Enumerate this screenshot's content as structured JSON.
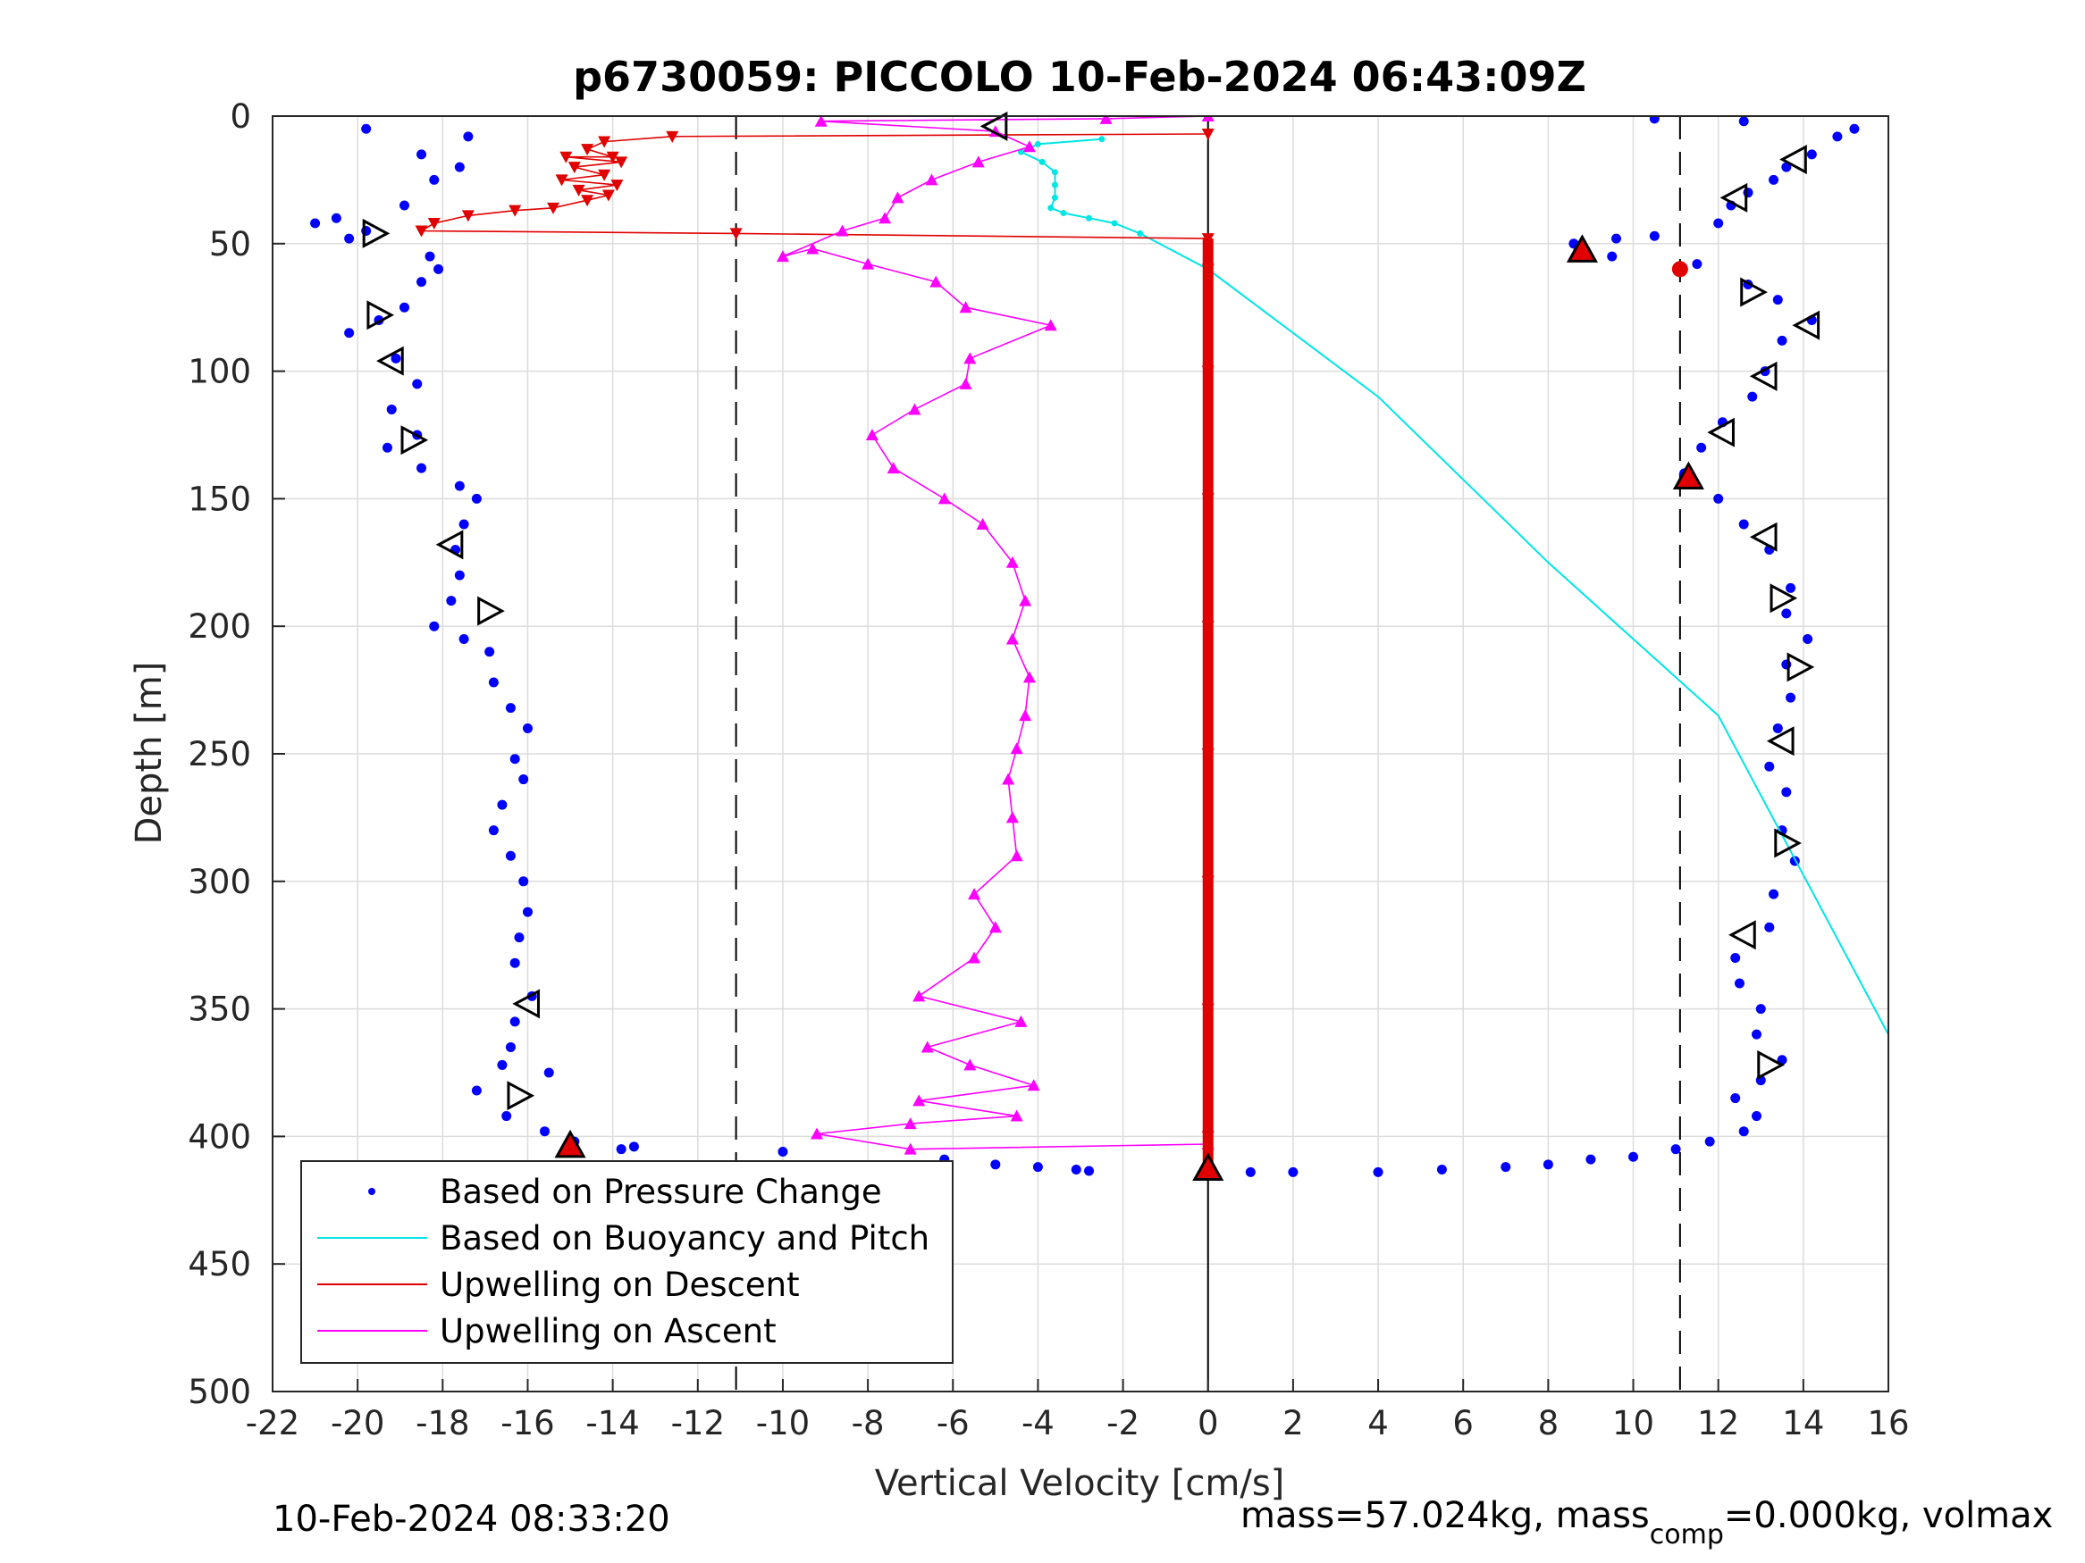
{
  "chart_data": {
    "type": "scatter",
    "title": "p6730059: PICCOLO 10-Feb-2024 06:43:09Z",
    "xlabel": "Vertical Velocity [cm/s]",
    "ylabel": "Depth [m]",
    "xlim": [
      -22,
      16
    ],
    "ylim": [
      0,
      500
    ],
    "y_reversed": true,
    "grid": true,
    "x_ticks": [
      -22,
      -20,
      -18,
      -16,
      -14,
      -12,
      -10,
      -8,
      -6,
      -4,
      -2,
      0,
      2,
      4,
      6,
      8,
      10,
      12,
      14,
      16
    ],
    "y_ticks": [
      0,
      50,
      100,
      150,
      200,
      250,
      300,
      350,
      400,
      450,
      500
    ],
    "x_tick_labels": [
      "-22",
      "-20",
      "-18",
      "-16",
      "-14",
      "-12",
      "-10",
      "-8",
      "-6",
      "-4",
      "-2",
      "0",
      "2",
      "4",
      "6",
      "8",
      "10",
      "12",
      "14",
      "16"
    ],
    "y_tick_labels": [
      "0",
      "50",
      "100",
      "150",
      "200",
      "250",
      "300",
      "350",
      "400",
      "450",
      "500"
    ],
    "reference_lines": [
      {
        "x": -11.1,
        "style": "dashed",
        "color": "#000000"
      },
      {
        "x": 11.1,
        "style": "dashed",
        "color": "#000000"
      },
      {
        "x": 0,
        "style": "solid",
        "color": "#000000"
      }
    ],
    "legend": {
      "position": "bottom-left",
      "entries": [
        {
          "label": "Based on Pressure Change",
          "color": "#0000ff",
          "style": "dot"
        },
        {
          "label": "Based on Buoyancy and Pitch",
          "color": "#00e5e5",
          "style": "line"
        },
        {
          "label": "Upwelling on Descent",
          "color": "#e00000",
          "style": "line"
        },
        {
          "label": "Upwelling on Ascent",
          "color": "#ff00ff",
          "style": "line"
        }
      ]
    },
    "series": [
      {
        "name": "Based on Pressure Change",
        "color": "#0000ff",
        "style": "dots",
        "points": [
          [
            -19.8,
            5
          ],
          [
            -18.5,
            15
          ],
          [
            -18.2,
            25
          ],
          [
            -17.6,
            20
          ],
          [
            -17.4,
            8
          ],
          [
            -18.9,
            35
          ],
          [
            -20.5,
            40
          ],
          [
            -21,
            42
          ],
          [
            -20.2,
            48
          ],
          [
            -19.8,
            45
          ],
          [
            -18.3,
            55
          ],
          [
            -18.1,
            60
          ],
          [
            -18.5,
            65
          ],
          [
            -18.9,
            75
          ],
          [
            -19.5,
            80
          ],
          [
            -20.2,
            85
          ],
          [
            -19.1,
            95
          ],
          [
            -18.6,
            105
          ],
          [
            -19.2,
            115
          ],
          [
            -18.6,
            125
          ],
          [
            -19.3,
            130
          ],
          [
            -18.5,
            138
          ],
          [
            -17.6,
            145
          ],
          [
            -17.2,
            150
          ],
          [
            -17.5,
            160
          ],
          [
            -17.7,
            170
          ],
          [
            -17.6,
            180
          ],
          [
            -17.8,
            190
          ],
          [
            -18.2,
            200
          ],
          [
            -17.5,
            205
          ],
          [
            -16.9,
            210
          ],
          [
            -16.8,
            222
          ],
          [
            -16.4,
            232
          ],
          [
            -16,
            240
          ],
          [
            -16.3,
            252
          ],
          [
            -16.1,
            260
          ],
          [
            -16.6,
            270
          ],
          [
            -16.8,
            280
          ],
          [
            -16.4,
            290
          ],
          [
            -16.1,
            300
          ],
          [
            -16,
            312
          ],
          [
            -16.2,
            322
          ],
          [
            -16.3,
            332
          ],
          [
            -15.9,
            345
          ],
          [
            -16.3,
            355
          ],
          [
            -16.4,
            365
          ],
          [
            -16.6,
            372
          ],
          [
            -15.5,
            375
          ],
          [
            -17.2,
            382
          ],
          [
            -16.5,
            392
          ],
          [
            -15.6,
            398
          ],
          [
            -14.9,
            402
          ],
          [
            -13.8,
            405
          ],
          [
            -13.5,
            404
          ],
          [
            -6.2,
            409
          ],
          [
            -5,
            411
          ],
          [
            -4,
            412
          ],
          [
            -3.1,
            413
          ],
          [
            -2.8,
            413.5
          ],
          [
            -10,
            406
          ],
          [
            0,
            413
          ],
          [
            1,
            414
          ],
          [
            2,
            414
          ],
          [
            4,
            414
          ],
          [
            5.5,
            413
          ],
          [
            7,
            412
          ],
          [
            8,
            411
          ],
          [
            9,
            409
          ],
          [
            10,
            408
          ],
          [
            11,
            405
          ],
          [
            11.8,
            402
          ],
          [
            12.6,
            398
          ],
          [
            12.9,
            392
          ],
          [
            12.4,
            385
          ],
          [
            13,
            378
          ],
          [
            13.5,
            370
          ],
          [
            12.9,
            360
          ],
          [
            13,
            350
          ],
          [
            12.5,
            340
          ],
          [
            12.4,
            330
          ],
          [
            13.2,
            318
          ],
          [
            13.3,
            305
          ],
          [
            13.8,
            292
          ],
          [
            13.5,
            280
          ],
          [
            13.6,
            265
          ],
          [
            13.2,
            255
          ],
          [
            13.4,
            240
          ],
          [
            13.7,
            228
          ],
          [
            13.6,
            215
          ],
          [
            14.1,
            205
          ],
          [
            13.6,
            195
          ],
          [
            13.7,
            185
          ],
          [
            13.2,
            170
          ],
          [
            12.6,
            160
          ],
          [
            12,
            150
          ],
          [
            11.2,
            140
          ],
          [
            11.6,
            130
          ],
          [
            12.1,
            120
          ],
          [
            12.8,
            110
          ],
          [
            13.1,
            100
          ],
          [
            13.5,
            88
          ],
          [
            14.2,
            80
          ],
          [
            13.4,
            72
          ],
          [
            12.7,
            66
          ],
          [
            11.5,
            58
          ],
          [
            9.5,
            55
          ],
          [
            8.7,
            53
          ],
          [
            8.6,
            50
          ],
          [
            9.6,
            48
          ],
          [
            10.5,
            47
          ],
          [
            12,
            42
          ],
          [
            12.3,
            35
          ],
          [
            12.7,
            30
          ],
          [
            13.3,
            25
          ],
          [
            13.6,
            20
          ],
          [
            14.2,
            15
          ],
          [
            14.8,
            8
          ],
          [
            15.2,
            5
          ],
          [
            12.6,
            2
          ],
          [
            10.5,
            1
          ]
        ]
      },
      {
        "name": "Based on Buoyancy and Pitch",
        "color": "#00e5e5",
        "style": "line",
        "points": [
          [
            -2.5,
            9
          ],
          [
            -4,
            11
          ],
          [
            -4.4,
            14
          ],
          [
            -3.9,
            18
          ],
          [
            -3.6,
            22
          ],
          [
            -3.6,
            27
          ],
          [
            -3.6,
            32
          ],
          [
            -3.7,
            36
          ],
          [
            -3.4,
            38
          ],
          [
            -2.8,
            40
          ],
          [
            -2.2,
            42
          ],
          [
            -1.6,
            46
          ],
          [
            0,
            60
          ],
          [
            4,
            110
          ],
          [
            8,
            175
          ],
          [
            12,
            235
          ],
          [
            16,
            360
          ]
        ]
      },
      {
        "name": "Upwelling on Descent",
        "color": "#e00000",
        "style": "line-markers",
        "points": [
          [
            0,
            7
          ],
          [
            -12.6,
            8
          ],
          [
            -14.2,
            10
          ],
          [
            -14.6,
            13
          ],
          [
            -14.0,
            16
          ],
          [
            -15.1,
            16
          ],
          [
            -13.8,
            18
          ],
          [
            -14.9,
            20
          ],
          [
            -14.2,
            23
          ],
          [
            -15.2,
            25
          ],
          [
            -13.9,
            27
          ],
          [
            -14.8,
            29
          ],
          [
            -14.1,
            31
          ],
          [
            -14.6,
            33
          ],
          [
            -15.4,
            36
          ],
          [
            -16.3,
            37
          ],
          [
            -17.4,
            39
          ],
          [
            -18.2,
            42
          ],
          [
            -18.5,
            45
          ],
          [
            -11.1,
            46
          ],
          [
            0,
            48
          ],
          [
            0,
            60
          ],
          [
            0,
            100
          ],
          [
            0,
            150
          ],
          [
            0,
            200
          ],
          [
            0,
            250
          ],
          [
            0,
            300
          ],
          [
            0,
            350
          ],
          [
            0,
            400
          ],
          [
            0,
            413
          ]
        ]
      },
      {
        "name": "Upwelling on Ascent",
        "color": "#ff00ff",
        "style": "line-markers",
        "points": [
          [
            0,
            403
          ],
          [
            -7,
            405
          ],
          [
            -9.2,
            399
          ],
          [
            -7,
            395
          ],
          [
            -4.5,
            392
          ],
          [
            -6.8,
            386
          ],
          [
            -4.1,
            380
          ],
          [
            -5.6,
            372
          ],
          [
            -6.6,
            365
          ],
          [
            -4.4,
            355
          ],
          [
            -6.8,
            345
          ],
          [
            -5.5,
            330
          ],
          [
            -5.0,
            318
          ],
          [
            -5.5,
            305
          ],
          [
            -4.5,
            290
          ],
          [
            -4.6,
            275
          ],
          [
            -4.7,
            260
          ],
          [
            -4.5,
            248
          ],
          [
            -4.3,
            235
          ],
          [
            -4.2,
            220
          ],
          [
            -4.6,
            205
          ],
          [
            -4.3,
            190
          ],
          [
            -4.6,
            175
          ],
          [
            -5.3,
            160
          ],
          [
            -6.2,
            150
          ],
          [
            -7.4,
            138
          ],
          [
            -7.9,
            125
          ],
          [
            -6.9,
            115
          ],
          [
            -5.7,
            105
          ],
          [
            -5.6,
            95
          ],
          [
            -3.7,
            82
          ],
          [
            -5.7,
            75
          ],
          [
            -6.4,
            65
          ],
          [
            -8.0,
            58
          ],
          [
            -9.3,
            52
          ],
          [
            -10.0,
            55
          ],
          [
            -8.6,
            45
          ],
          [
            -7.6,
            40
          ],
          [
            -7.3,
            32
          ],
          [
            -6.5,
            25
          ],
          [
            -5.4,
            18
          ],
          [
            -4.2,
            12
          ],
          [
            -5.0,
            6
          ],
          [
            -9.1,
            2
          ],
          [
            -2.4,
            1
          ],
          [
            0,
            0
          ]
        ]
      }
    ],
    "markers": {
      "open_triangles_color": "#000000",
      "filled_triangles_color": "#e00000",
      "points": [
        [
          -19.6,
          46,
          "right"
        ],
        [
          -19.5,
          78,
          "right"
        ],
        [
          -19.2,
          96,
          "left"
        ],
        [
          -18.7,
          127,
          "right"
        ],
        [
          -17.8,
          168,
          "left"
        ],
        [
          -16.9,
          194,
          "right"
        ],
        [
          -16,
          348,
          "left"
        ],
        [
          -16.2,
          384,
          "right"
        ],
        [
          -15,
          404,
          "filled"
        ],
        [
          -5.0,
          4,
          "left"
        ],
        [
          8.8,
          53,
          "filled"
        ],
        [
          11.1,
          60,
          "dot"
        ],
        [
          13.8,
          17,
          "left"
        ],
        [
          12.4,
          32,
          "left"
        ],
        [
          12.8,
          69,
          "right"
        ],
        [
          14.1,
          82,
          "left"
        ],
        [
          13.1,
          102,
          "left"
        ],
        [
          12.1,
          124,
          "left"
        ],
        [
          11.3,
          142,
          "filled"
        ],
        [
          13.1,
          165,
          "left"
        ],
        [
          13.5,
          189,
          "right"
        ],
        [
          13.9,
          216,
          "right"
        ],
        [
          13.5,
          245,
          "left"
        ],
        [
          13.6,
          285,
          "right"
        ],
        [
          12.6,
          321,
          "left"
        ],
        [
          13.2,
          372,
          "right"
        ],
        [
          0,
          413,
          "filled"
        ]
      ]
    }
  },
  "footer": {
    "timestamp": "10-Feb-2024 08:33:20",
    "mass_prefix": "mass=57.024kg, mass",
    "mass_sub": "comp",
    "mass_suffix": "=0.000kg, volmax"
  }
}
